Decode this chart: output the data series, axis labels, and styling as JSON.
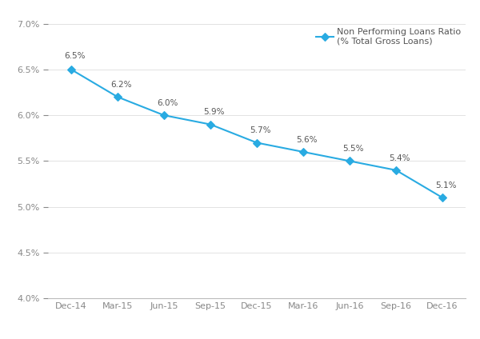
{
  "categories": [
    "Dec-14",
    "Mar-15",
    "Jun-15",
    "Sep-15",
    "Dec-15",
    "Mar-16",
    "Jun-16",
    "Sep-16",
    "Dec-16"
  ],
  "values": [
    6.5,
    6.2,
    6.0,
    5.9,
    5.7,
    5.6,
    5.5,
    5.4,
    5.1
  ],
  "labels": [
    "6.5%",
    "6.2%",
    "6.0%",
    "5.9%",
    "5.7%",
    "5.6%",
    "5.5%",
    "5.4%",
    "5.1%"
  ],
  "line_color": "#29ABE2",
  "marker_face": "#29ABE2",
  "marker_edge": "#29ABE2",
  "marker_style": "D",
  "marker_size": 5,
  "line_width": 1.5,
  "ylim": [
    4.0,
    7.0
  ],
  "yticks": [
    4.0,
    4.5,
    5.0,
    5.5,
    6.0,
    6.5,
    7.0
  ],
  "legend_label": "Non Performing Loans Ratio\n(% Total Gross Loans)",
  "background_color": "#ffffff",
  "grid_color": "#dddddd",
  "label_fontsize": 7.5,
  "tick_fontsize": 8,
  "legend_fontsize": 8,
  "tick_color": "#888888",
  "label_color": "#555555"
}
